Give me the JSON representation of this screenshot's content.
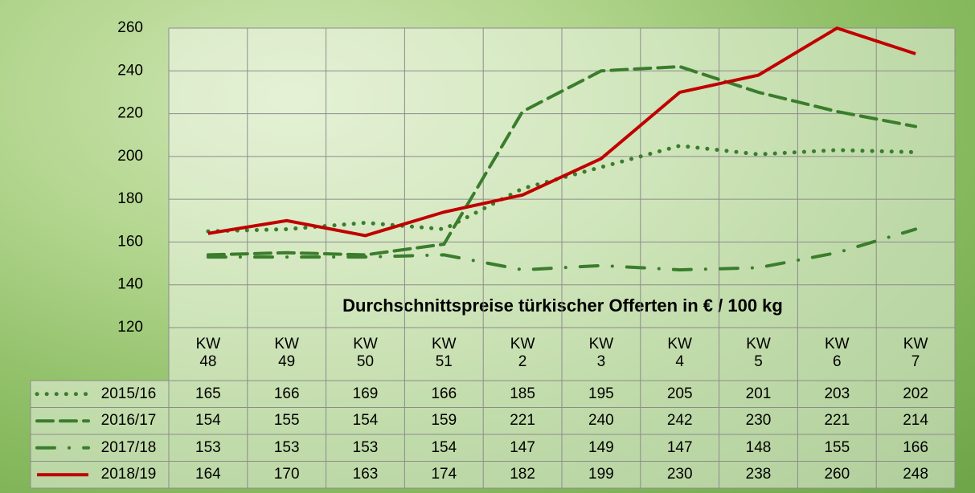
{
  "chart_data": {
    "type": "line",
    "title": "Durchschnittspreise türkischer Offerten in € / 100 kg",
    "categories": [
      "KW 48",
      "KW 49",
      "KW 50",
      "KW 51",
      "KW 2",
      "KW 3",
      "KW 4",
      "KW 5",
      "KW 6",
      "KW 7"
    ],
    "series": [
      {
        "name": "2015/16",
        "color": "#3a7d2c",
        "style": "dotted",
        "values": [
          165,
          166,
          169,
          166,
          185,
          195,
          205,
          201,
          203,
          202
        ]
      },
      {
        "name": "2016/17",
        "color": "#3a7d2c",
        "style": "dashed",
        "values": [
          154,
          155,
          154,
          159,
          221,
          240,
          242,
          230,
          221,
          214
        ]
      },
      {
        "name": "2017/18",
        "color": "#3a7d2c",
        "style": "dashdot",
        "values": [
          153,
          153,
          153,
          154,
          147,
          149,
          147,
          148,
          155,
          166
        ]
      },
      {
        "name": "2018/19",
        "color": "#c00000",
        "style": "solid",
        "values": [
          164,
          170,
          163,
          174,
          182,
          199,
          230,
          238,
          260,
          248
        ]
      }
    ],
    "ylim": [
      120,
      260
    ],
    "yticks": [
      120,
      140,
      160,
      180,
      200,
      220,
      240,
      260
    ],
    "grid": true,
    "data_table": true
  }
}
